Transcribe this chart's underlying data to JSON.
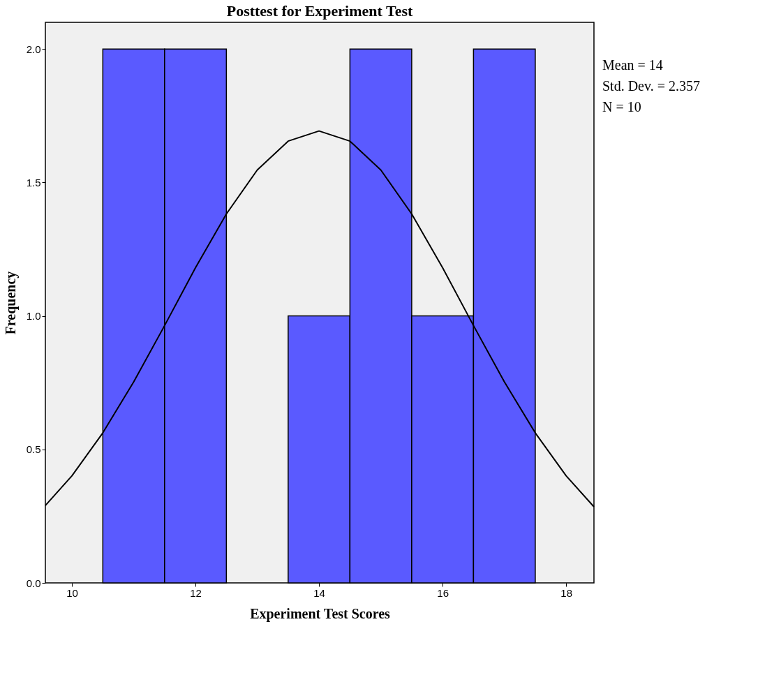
{
  "chart_data": {
    "type": "histogram",
    "title": "Posttest for Experiment Test",
    "xlabel": "Experiment Test Scores",
    "ylabel": "Frequency",
    "bins": [
      10.5,
      11.5,
      12.5,
      13.5,
      14.5,
      15.5,
      16.5,
      17.5
    ],
    "values": [
      2,
      2,
      0,
      1,
      2,
      1,
      2
    ],
    "colors": [
      "#5a5aff",
      "#5a5aff",
      "#5a5aff",
      "#5a5aff",
      "#5a5aff",
      "#5a5aff",
      "#5a5aff"
    ],
    "series": [
      {
        "type": "line",
        "color": "#000000",
        "x": [
          9.57,
          10,
          10.5,
          11,
          11.5,
          12,
          12.5,
          13,
          13.5,
          14,
          14.5,
          15,
          15.5,
          16,
          16.5,
          17,
          17.5,
          18,
          18.45
        ],
        "values": [
          0.29,
          0.401,
          0.562,
          0.753,
          0.964,
          1.181,
          1.382,
          1.547,
          1.655,
          1.693,
          1.655,
          1.547,
          1.382,
          1.181,
          0.964,
          0.753,
          0.562,
          0.401,
          0.285
        ]
      }
    ],
    "xlim": [
      9.57,
      18.45
    ],
    "xticks": [
      10,
      12,
      14,
      16,
      18
    ],
    "ylim": [
      0,
      2.1
    ],
    "yticks": [
      {
        "value": 0,
        "label": "0.0"
      },
      {
        "value": 0.5,
        "label": "0.5"
      },
      {
        "value": 1,
        "label": "1.0"
      },
      {
        "value": 1.5,
        "label": "1.5"
      },
      {
        "value": 2,
        "label": "2.0"
      }
    ],
    "grid": false,
    "annotations": [
      "Mean = 14",
      "Std. Dev. = 2.357",
      "N = 10"
    ]
  }
}
